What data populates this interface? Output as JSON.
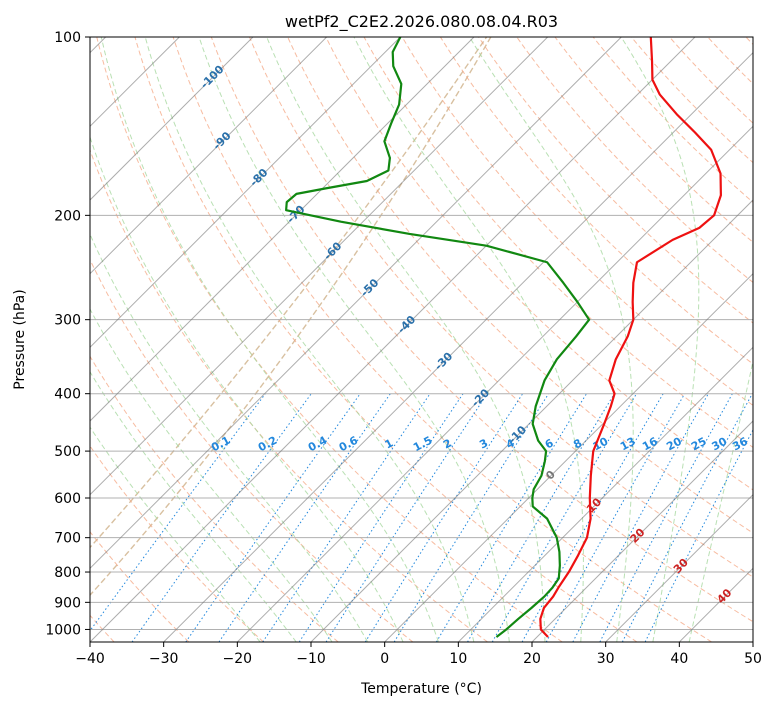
{
  "chart_data": {
    "type": "line",
    "title": "wetPf2_C2E2.2026.080.08.04.R03",
    "xlabel": "Temperature (°C)",
    "ylabel": "Pressure (hPa)",
    "xlim": [
      -40,
      50
    ],
    "ylim": [
      1050,
      100
    ],
    "y_scale": "log",
    "x_ticks": [
      -40,
      -30,
      -20,
      -10,
      0,
      10,
      20,
      30,
      40,
      50
    ],
    "y_ticks": [
      100,
      200,
      300,
      400,
      500,
      600,
      700,
      800,
      900,
      1000
    ],
    "grid": true,
    "skew_degrees": 45,
    "colors": {
      "temperature": "#ee1111",
      "dewpoint": "#118811",
      "isotherm": "#777777",
      "dry_adiabat": "#f4a582",
      "moist_adiabat": "#a8d8a0",
      "mixing_ratio": "#2288dd",
      "isotherm_label": "#2a70aa",
      "isotherm_label_warm": "#cc2222",
      "mixing_label": "#2288dd",
      "cross_curve": "#d8c0a0"
    },
    "series": [
      {
        "role": "temperature",
        "points": [
          [
            1030,
            21.5
          ],
          [
            1000,
            19.5
          ],
          [
            960,
            18.0
          ],
          [
            920,
            17.0
          ],
          [
            880,
            16.7
          ],
          [
            850,
            16.2
          ],
          [
            800,
            15.5
          ],
          [
            750,
            14.5
          ],
          [
            700,
            13.3
          ],
          [
            650,
            11.2
          ],
          [
            600,
            8.3
          ],
          [
            550,
            5.4
          ],
          [
            500,
            2.4
          ],
          [
            450,
            0.2
          ],
          [
            420,
            -1.3
          ],
          [
            400,
            -2.5
          ],
          [
            380,
            -5.0
          ],
          [
            350,
            -7.0
          ],
          [
            320,
            -8.5
          ],
          [
            300,
            -10.0
          ],
          [
            280,
            -12.5
          ],
          [
            260,
            -15.0
          ],
          [
            240,
            -17.3
          ],
          [
            220,
            -15.5
          ],
          [
            210,
            -13.5
          ],
          [
            200,
            -13.2
          ],
          [
            185,
            -15.0
          ],
          [
            170,
            -18.0
          ],
          [
            155,
            -22.5
          ],
          [
            145,
            -27.0
          ],
          [
            135,
            -32.0
          ],
          [
            125,
            -37.0
          ],
          [
            118,
            -40.0
          ],
          [
            110,
            -42.5
          ],
          [
            100,
            -46.0
          ]
        ]
      },
      {
        "role": "dewpoint",
        "points": [
          [
            1030,
            14.5
          ],
          [
            1000,
            14.8
          ],
          [
            960,
            15.0
          ],
          [
            920,
            15.3
          ],
          [
            880,
            15.5
          ],
          [
            850,
            15.4
          ],
          [
            820,
            15.0
          ],
          [
            780,
            13.4
          ],
          [
            740,
            11.5
          ],
          [
            700,
            9.2
          ],
          [
            650,
            5.3
          ],
          [
            620,
            1.7
          ],
          [
            600,
            0.5
          ],
          [
            580,
            -0.5
          ],
          [
            550,
            -1.3
          ],
          [
            520,
            -2.8
          ],
          [
            500,
            -4.0
          ],
          [
            480,
            -6.5
          ],
          [
            450,
            -9.5
          ],
          [
            420,
            -11.5
          ],
          [
            380,
            -13.8
          ],
          [
            350,
            -15.0
          ],
          [
            320,
            -15.5
          ],
          [
            300,
            -16.0
          ],
          [
            280,
            -20.0
          ],
          [
            260,
            -24.5
          ],
          [
            240,
            -29.5
          ],
          [
            225,
            -40.0
          ],
          [
            215,
            -52.0
          ],
          [
            205,
            -63.0
          ],
          [
            196,
            -72.0
          ],
          [
            190,
            -73.0
          ],
          [
            184,
            -72.8
          ],
          [
            180,
            -69.5
          ],
          [
            175,
            -65.0
          ],
          [
            168,
            -63.5
          ],
          [
            160,
            -65.0
          ],
          [
            150,
            -68.0
          ],
          [
            140,
            -69.5
          ],
          [
            130,
            -71.0
          ],
          [
            120,
            -73.5
          ],
          [
            112,
            -77.0
          ],
          [
            106,
            -79.0
          ],
          [
            100,
            -80.0
          ]
        ]
      }
    ],
    "isotherm_labels": [
      {
        "value": -100,
        "text": "-100"
      },
      {
        "value": -90,
        "text": "-90"
      },
      {
        "value": -80,
        "text": "-80"
      },
      {
        "value": -70,
        "text": "-70"
      },
      {
        "value": -60,
        "text": "-60"
      },
      {
        "value": -50,
        "text": "-50"
      },
      {
        "value": -40,
        "text": "-40"
      },
      {
        "value": -30,
        "text": "-30"
      },
      {
        "value": -20,
        "text": "-20"
      },
      {
        "value": -10,
        "text": "-10"
      },
      {
        "value": 0,
        "text": "0"
      },
      {
        "value": 10,
        "text": "10"
      },
      {
        "value": 20,
        "text": "20"
      },
      {
        "value": 30,
        "text": "30"
      },
      {
        "value": 40,
        "text": "40"
      }
    ],
    "mixing_ratios": [
      {
        "value": 0.1,
        "text": "0.1"
      },
      {
        "value": 0.2,
        "text": "0.2"
      },
      {
        "value": 0.4,
        "text": "0.4"
      },
      {
        "value": 0.6,
        "text": "0.6"
      },
      {
        "value": 1,
        "text": "1"
      },
      {
        "value": 1.5,
        "text": "1.5"
      },
      {
        "value": 2,
        "text": "2"
      },
      {
        "value": 3,
        "text": "3"
      },
      {
        "value": 4,
        "text": "4"
      },
      {
        "value": 6,
        "text": "6"
      },
      {
        "value": 8,
        "text": "8"
      },
      {
        "value": 10,
        "text": "10"
      },
      {
        "value": 13,
        "text": "13"
      },
      {
        "value": 16,
        "text": "16"
      },
      {
        "value": 20,
        "text": "20"
      },
      {
        "value": 25,
        "text": "25"
      },
      {
        "value": 30,
        "text": "30"
      },
      {
        "value": 36,
        "text": "36"
      }
    ]
  }
}
